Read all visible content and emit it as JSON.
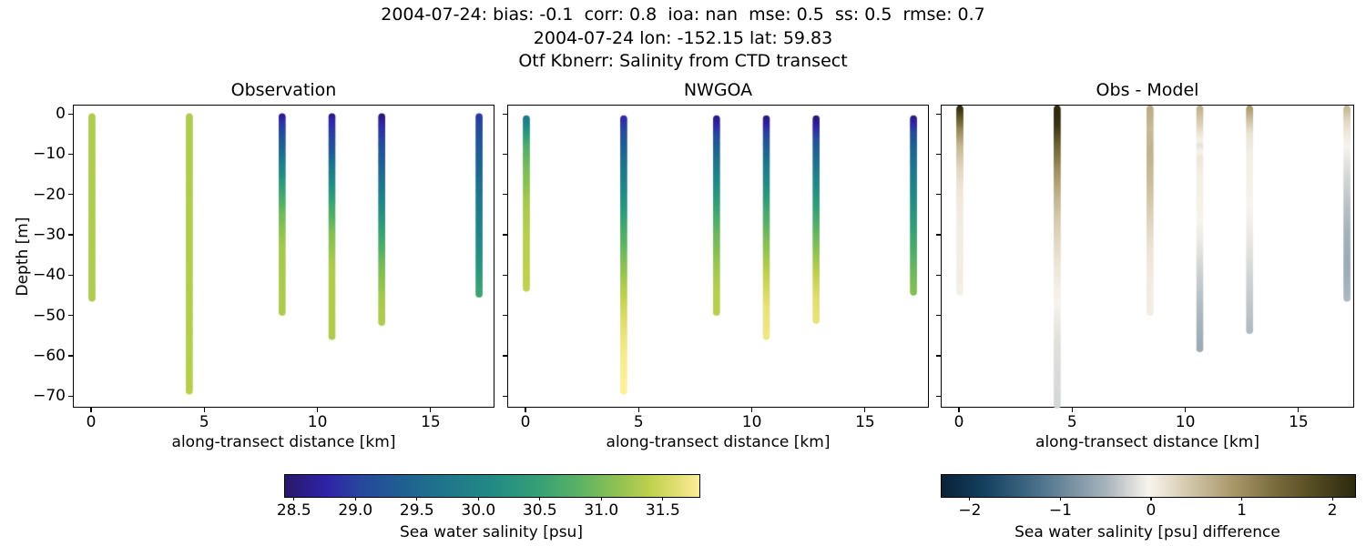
{
  "suptitle": {
    "line1": "2004-07-24: bias: -0.1  corr: 0.8  ioa: nan  mse: 0.5  ss: 0.5  rmse: 0.7",
    "line2": "2004-07-24 lon: -152.15 lat: 59.83",
    "line3": "Otf Kbnerr: Salinity from CTD transect"
  },
  "chart_data": {
    "type": "scatter",
    "xlabel": "along-transect distance [km]",
    "ylabel": "Depth [m]",
    "xlim": [
      -0.8,
      17.8
    ],
    "ylim": [
      -72.9,
      2.3
    ],
    "grid": false,
    "xticks": {
      "values": [
        0,
        5,
        10,
        15
      ],
      "labels": [
        "0",
        "5",
        "10",
        "15"
      ]
    },
    "yticks": {
      "values": [
        0,
        -10,
        -20,
        -30,
        -40,
        -50,
        -60,
        -70
      ],
      "labels": [
        "0",
        "−10",
        "−20",
        "−30",
        "−40",
        "−50",
        "−60",
        "−70"
      ]
    },
    "profile_x_km": [
      0,
      4.3,
      8.4,
      10.6,
      12.8,
      17.1
    ],
    "colormaps": {
      "haline": {
        "vmin": 28.42,
        "vmax": 31.79,
        "stops": [
          [
            0.0,
            "#29186b"
          ],
          [
            0.1,
            "#2f23a8"
          ],
          [
            0.18,
            "#27479c"
          ],
          [
            0.28,
            "#1f6092"
          ],
          [
            0.38,
            "#1f758c"
          ],
          [
            0.5,
            "#238a85"
          ],
          [
            0.6,
            "#339d78"
          ],
          [
            0.7,
            "#57b066"
          ],
          [
            0.8,
            "#8ec153"
          ],
          [
            0.88,
            "#bed04e"
          ],
          [
            0.95,
            "#e3df74"
          ],
          [
            1.0,
            "#fdee9a"
          ]
        ]
      },
      "diff": {
        "vmin": -2.32,
        "vmax": 2.24,
        "stops": [
          [
            0.0,
            "#0a2239"
          ],
          [
            0.1,
            "#14405f"
          ],
          [
            0.2,
            "#3a6480"
          ],
          [
            0.3,
            "#6f8b9d"
          ],
          [
            0.4,
            "#a9b5bd"
          ],
          [
            0.47,
            "#e2e1de"
          ],
          [
            0.5,
            "#f7f4ee"
          ],
          [
            0.53,
            "#eee8da"
          ],
          [
            0.6,
            "#d3c7ab"
          ],
          [
            0.7,
            "#ab9a6d"
          ],
          [
            0.8,
            "#7d6f3f"
          ],
          [
            0.9,
            "#554c22"
          ],
          [
            1.0,
            "#2e2a10"
          ]
        ]
      }
    },
    "panels": [
      {
        "title": "Observation",
        "cmap": "haline",
        "units": "psu",
        "profiles": [
          {
            "x_km": 0,
            "stops": [
              [
                -0.5,
                31.3
              ],
              [
                -45.5,
                31.3
              ]
            ]
          },
          {
            "x_km": 4.3,
            "stops": [
              [
                -0.5,
                31.3
              ],
              [
                -68.5,
                31.35
              ]
            ]
          },
          {
            "x_km": 8.4,
            "stops": [
              [
                -0.5,
                28.55
              ],
              [
                -2,
                28.85
              ],
              [
                -7,
                29.25
              ],
              [
                -12,
                29.8
              ],
              [
                -18,
                30.45
              ],
              [
                -25,
                30.95
              ],
              [
                -33,
                31.25
              ],
              [
                -49,
                31.3
              ]
            ]
          },
          {
            "x_km": 10.6,
            "stops": [
              [
                -0.5,
                28.5
              ],
              [
                -1.5,
                28.75
              ],
              [
                -9,
                29.2
              ],
              [
                -13,
                29.7
              ],
              [
                -18,
                30.15
              ],
              [
                -23,
                30.6
              ],
              [
                -30,
                31.05
              ],
              [
                -38,
                31.3
              ],
              [
                -55,
                31.3
              ]
            ]
          },
          {
            "x_km": 12.8,
            "stops": [
              [
                -0.5,
                28.45
              ],
              [
                -3,
                28.8
              ],
              [
                -12,
                29.35
              ],
              [
                -20,
                29.85
              ],
              [
                -28,
                30.4
              ],
              [
                -38,
                31.0
              ],
              [
                -46,
                31.25
              ],
              [
                -51.5,
                31.3
              ]
            ]
          },
          {
            "x_km": 17.1,
            "stops": [
              [
                -0.5,
                28.9
              ],
              [
                -5,
                29.15
              ],
              [
                -12,
                29.4
              ],
              [
                -20,
                29.7
              ],
              [
                -28,
                29.95
              ],
              [
                -36,
                30.2
              ],
              [
                -44.5,
                30.55
              ]
            ]
          }
        ]
      },
      {
        "title": "NWGOA",
        "cmap": "haline",
        "units": "psu",
        "profiles": [
          {
            "x_km": 0,
            "stops": [
              [
                -1,
                29.7
              ],
              [
                -4,
                30.2
              ],
              [
                -8,
                30.7
              ],
              [
                -14,
                31.0
              ],
              [
                -22,
                31.25
              ],
              [
                -30,
                31.35
              ],
              [
                -43,
                31.4
              ]
            ]
          },
          {
            "x_km": 4.3,
            "stops": [
              [
                -1,
                28.8
              ],
              [
                -6,
                29.2
              ],
              [
                -12,
                29.6
              ],
              [
                -20,
                30.1
              ],
              [
                -28,
                30.6
              ],
              [
                -36,
                31.0
              ],
              [
                -44,
                31.35
              ],
              [
                -52,
                31.6
              ],
              [
                -60,
                31.75
              ],
              [
                -68.5,
                31.8
              ]
            ]
          },
          {
            "x_km": 8.4,
            "stops": [
              [
                -1,
                28.55
              ],
              [
                -5,
                29.0
              ],
              [
                -10,
                29.5
              ],
              [
                -16,
                30.0
              ],
              [
                -23,
                30.5
              ],
              [
                -30,
                30.9
              ],
              [
                -38,
                31.2
              ],
              [
                -44,
                31.35
              ],
              [
                -49,
                31.35
              ]
            ]
          },
          {
            "x_km": 10.6,
            "stops": [
              [
                -1,
                28.5
              ],
              [
                -5,
                29.0
              ],
              [
                -10,
                29.5
              ],
              [
                -16,
                30.0
              ],
              [
                -24,
                30.6
              ],
              [
                -32,
                31.05
              ],
              [
                -40,
                31.4
              ],
              [
                -48,
                31.65
              ],
              [
                -55,
                31.7
              ]
            ]
          },
          {
            "x_km": 12.8,
            "stops": [
              [
                -1,
                28.45
              ],
              [
                -5,
                28.95
              ],
              [
                -10,
                29.45
              ],
              [
                -16,
                29.95
              ],
              [
                -24,
                30.5
              ],
              [
                -32,
                31.0
              ],
              [
                -40,
                31.4
              ],
              [
                -46,
                31.6
              ],
              [
                -51,
                31.65
              ]
            ]
          },
          {
            "x_km": 17.1,
            "stops": [
              [
                -1,
                28.55
              ],
              [
                -5,
                29.1
              ],
              [
                -10,
                29.5
              ],
              [
                -18,
                29.95
              ],
              [
                -26,
                30.35
              ],
              [
                -34,
                30.7
              ],
              [
                -40,
                30.95
              ],
              [
                -44,
                31.05
              ]
            ]
          }
        ]
      },
      {
        "title": "Obs - Model",
        "cmap": "diff",
        "units": "psu difference",
        "profiles": [
          {
            "x_km": 0,
            "stops": [
              [
                1.5,
                2.25
              ],
              [
                -1,
                1.7
              ],
              [
                -4,
                1.1
              ],
              [
                -8,
                0.6
              ],
              [
                -13,
                0.3
              ],
              [
                -18,
                0.12
              ],
              [
                -25,
                0.05
              ],
              [
                -44,
                0.02
              ]
            ]
          },
          {
            "x_km": 4.3,
            "stops": [
              [
                1.5,
                2.3
              ],
              [
                -3,
                2.1
              ],
              [
                -8,
                1.5
              ],
              [
                -14,
                1.0
              ],
              [
                -20,
                0.65
              ],
              [
                -26,
                0.4
              ],
              [
                -33,
                0.22
              ],
              [
                -40,
                0.08
              ],
              [
                -48,
                -0.05
              ],
              [
                -56,
                -0.18
              ],
              [
                -72,
                -0.25
              ]
            ]
          },
          {
            "x_km": 8.4,
            "stops": [
              [
                1.5,
                0.7
              ],
              [
                -4,
                0.55
              ],
              [
                -10,
                0.62
              ],
              [
                -18,
                0.5
              ],
              [
                -26,
                0.3
              ],
              [
                -34,
                0.12
              ],
              [
                -42,
                0.05
              ],
              [
                -49,
                0.04
              ]
            ]
          },
          {
            "x_km": 10.6,
            "stops": [
              [
                1.5,
                0.65
              ],
              [
                -3,
                0.3
              ],
              [
                -6,
                0.05
              ],
              [
                -8,
                -0.18
              ],
              [
                -11,
                0.1
              ],
              [
                -15,
                0.02
              ],
              [
                -25,
                -0.02
              ],
              [
                -32,
                -0.12
              ],
              [
                -40,
                -0.3
              ],
              [
                -48,
                -0.45
              ],
              [
                -58,
                -0.6
              ]
            ]
          },
          {
            "x_km": 12.8,
            "stops": [
              [
                1.5,
                0.9
              ],
              [
                -2,
                0.45
              ],
              [
                -5,
                0.15
              ],
              [
                -10,
                0.02
              ],
              [
                -20,
                -0.02
              ],
              [
                -28,
                -0.08
              ],
              [
                -36,
                -0.2
              ],
              [
                -44,
                -0.32
              ],
              [
                -53.5,
                -0.45
              ]
            ]
          },
          {
            "x_km": 17.1,
            "stops": [
              [
                1.5,
                0.6
              ],
              [
                -2,
                0.25
              ],
              [
                -6,
                0.05
              ],
              [
                -10,
                -0.1
              ],
              [
                -16,
                -0.25
              ],
              [
                -24,
                -0.42
              ],
              [
                -32,
                -0.55
              ],
              [
                -38,
                -0.6
              ],
              [
                -45.5,
                -0.48
              ]
            ]
          }
        ]
      }
    ],
    "colorbars": [
      {
        "label": "Sea water salinity [psu]",
        "cmap": "haline",
        "tick_values": [
          28.5,
          29.0,
          29.5,
          30.0,
          30.5,
          31.0,
          31.5
        ],
        "tick_labels": [
          "28.5",
          "29.0",
          "29.5",
          "30.0",
          "30.5",
          "31.0",
          "31.5"
        ]
      },
      {
        "label": "Sea water salinity [psu] difference",
        "cmap": "diff",
        "tick_values": [
          -2,
          -1,
          0,
          1,
          2
        ],
        "tick_labels": [
          "−2",
          "−1",
          "0",
          "1",
          "2"
        ]
      }
    ]
  }
}
